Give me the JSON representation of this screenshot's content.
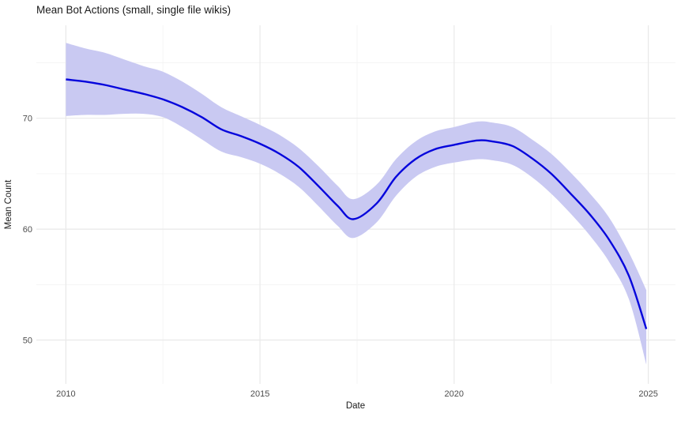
{
  "chart_data": {
    "type": "line",
    "title": "Mean Bot Actions (small, single file wikis)",
    "xlabel": "Date",
    "ylabel": "Mean Count",
    "xlim": [
      2009.24,
      2025.7
    ],
    "ylim": [
      46.05,
      78.38
    ],
    "x_ticks": [
      2010,
      2015,
      2020,
      2025
    ],
    "x_minor_ticks": [
      2012.5,
      2017.5,
      2022.5
    ],
    "y_ticks": [
      50,
      60,
      70
    ],
    "y_minor_ticks": [
      55,
      65,
      75
    ],
    "grid": true,
    "legend": false,
    "series": [
      {
        "name": "confidence-band",
        "type": "ribbon",
        "fill": "#C9C9F2",
        "x": [
          2010,
          2010.5,
          2011,
          2011.5,
          2012,
          2012.5,
          2013,
          2013.5,
          2014,
          2014.5,
          2015,
          2015.5,
          2016,
          2016.5,
          2017,
          2017.4,
          2018,
          2018.5,
          2019,
          2019.5,
          2020,
          2020.6,
          2021,
          2021.5,
          2022,
          2022.5,
          2023,
          2023.5,
          2024,
          2024.5,
          2024.95
        ],
        "upper": [
          76.8,
          76.3,
          75.9,
          75.3,
          74.7,
          74.2,
          73.3,
          72.2,
          71.0,
          70.2,
          69.4,
          68.5,
          67.3,
          65.7,
          63.9,
          62.7,
          64.0,
          66.3,
          67.9,
          68.8,
          69.2,
          69.7,
          69.6,
          69.2,
          68.1,
          66.8,
          65.1,
          63.2,
          61.0,
          57.9,
          54.5
        ],
        "lower": [
          70.2,
          70.3,
          70.3,
          70.4,
          70.4,
          70.1,
          69.2,
          68.1,
          67.0,
          66.5,
          65.9,
          65.0,
          63.8,
          62.1,
          60.3,
          59.2,
          60.6,
          63.0,
          64.7,
          65.6,
          66.0,
          66.3,
          66.2,
          65.8,
          64.7,
          63.2,
          61.4,
          59.4,
          57.0,
          53.7,
          47.8
        ]
      },
      {
        "name": "mean-count",
        "type": "line",
        "color": "#0505DC",
        "x": [
          2010,
          2010.5,
          2011,
          2011.5,
          2012,
          2012.5,
          2013,
          2013.5,
          2014,
          2014.5,
          2015,
          2015.5,
          2016,
          2016.5,
          2017,
          2017.4,
          2018,
          2018.5,
          2019,
          2019.5,
          2020,
          2020.6,
          2021,
          2021.5,
          2022,
          2022.5,
          2023,
          2023.5,
          2024,
          2024.5,
          2024.95
        ],
        "y": [
          73.5,
          73.3,
          73.0,
          72.6,
          72.2,
          71.7,
          71.0,
          70.1,
          69.0,
          68.4,
          67.7,
          66.8,
          65.6,
          63.9,
          62.1,
          60.9,
          62.3,
          64.7,
          66.3,
          67.2,
          67.6,
          68.0,
          67.9,
          67.5,
          66.4,
          65.0,
          63.2,
          61.3,
          59.0,
          55.8,
          51.0
        ]
      }
    ]
  },
  "colors": {
    "background": "#FFFFFF",
    "grid_major": "#E9E9E9",
    "grid_minor": "#F4F4F4",
    "tick_label": "#4D4D4D",
    "text": "#1A1A1A",
    "line": "#0505DC",
    "band": "#C9C9F2"
  }
}
